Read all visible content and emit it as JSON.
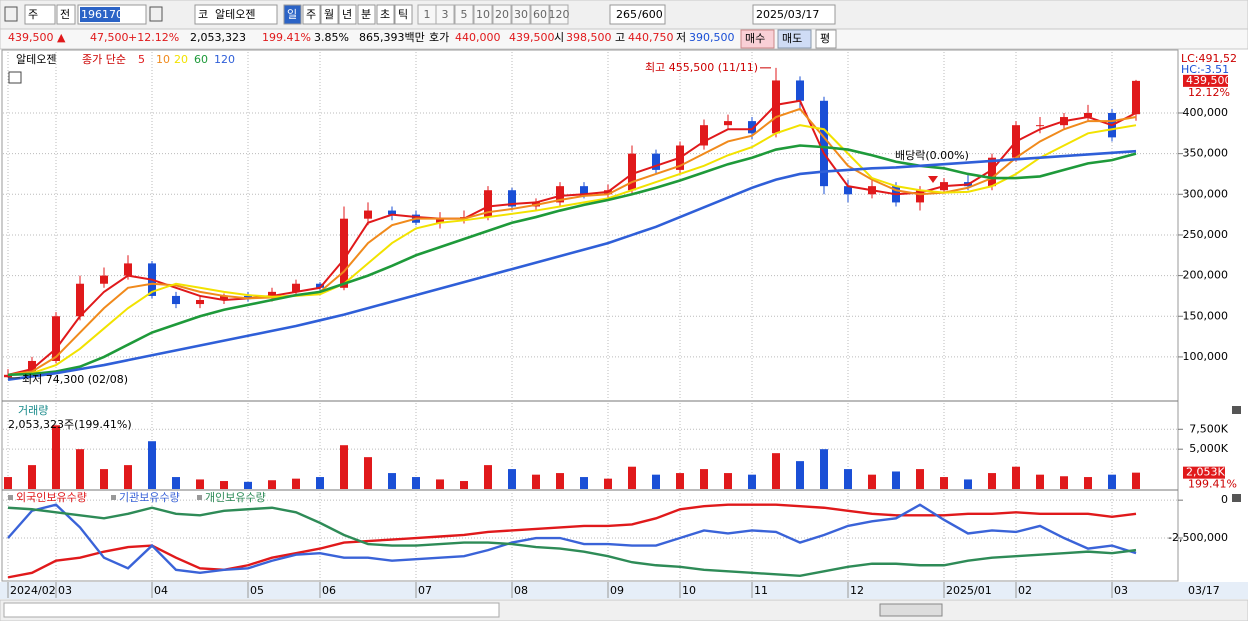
{
  "toolbar": {
    "period": "주",
    "prev": "전",
    "code": "196170",
    "market": "코",
    "name": "알테오젠",
    "units": [
      "일",
      "주",
      "월",
      "년",
      "분",
      "초",
      "틱"
    ],
    "intervals": [
      "1",
      "3",
      "5",
      "10",
      "20",
      "30",
      "60",
      "120"
    ],
    "count": "265",
    "max": "/600",
    "date": "2025/03/17"
  },
  "quote": {
    "price": "439,500 ▲",
    "change": "47,500",
    "rate": "+12.12%",
    "volume": "2,053,323",
    "volume_rate": "199.41%",
    "turnover": "3.85%",
    "amount": "865,393백만",
    "bid_label": "호가",
    "ask": "440,000",
    "bid": "439,500",
    "open_label": "시",
    "open": "398,500",
    "high_label": "고",
    "high": "440,750",
    "low_label": "저",
    "low": "390,500",
    "buy": "매수",
    "sell": "매도",
    "avg": "평"
  },
  "chart_data": [
    {
      "type": "candlestick",
      "title": "알테오젠",
      "legend_title": "종가 단순",
      "categories": [
        "2024/02",
        null,
        "03",
        null,
        null,
        null,
        "04",
        null,
        null,
        null,
        "05",
        null,
        null,
        "06",
        null,
        null,
        null,
        "07",
        null,
        null,
        null,
        "08",
        null,
        null,
        null,
        "09",
        null,
        null,
        "10",
        null,
        null,
        "11",
        null,
        null,
        null,
        "12",
        null,
        null,
        null,
        "2025/01",
        null,
        null,
        "02",
        null,
        null,
        null,
        "03",
        null
      ],
      "x_end_label": "03/17",
      "candles": {
        "open": [
          75000,
          78000,
          95000,
          150000,
          190000,
          200000,
          215000,
          175000,
          165000,
          170000,
          175000,
          172000,
          180000,
          190000,
          185000,
          270000,
          280000,
          275000,
          265000,
          270000,
          272000,
          305000,
          285000,
          290000,
          310000,
          300000,
          305000,
          350000,
          330000,
          360000,
          385000,
          390000,
          375000,
          440000,
          415000,
          310000,
          300000,
          310000,
          290000,
          305000,
          315000,
          310000,
          345000,
          385000,
          385000,
          395000,
          400000,
          398500
        ],
        "high": [
          85000,
          100000,
          155000,
          200000,
          210000,
          225000,
          218000,
          180000,
          175000,
          178000,
          180000,
          185000,
          195000,
          192000,
          285000,
          290000,
          285000,
          280000,
          278000,
          280000,
          310000,
          308000,
          295000,
          315000,
          315000,
          312000,
          360000,
          355000,
          365000,
          392000,
          398000,
          395000,
          455500,
          445000,
          420000,
          318000,
          320000,
          315000,
          310000,
          320000,
          325000,
          350000,
          390000,
          395000,
          400000,
          410000,
          405000,
          440750
        ],
        "low": [
          74300,
          76000,
          92000,
          145000,
          185000,
          195000,
          172000,
          160000,
          160000,
          165000,
          168000,
          168000,
          176000,
          180000,
          182000,
          262000,
          268000,
          262000,
          258000,
          264000,
          268000,
          280000,
          280000,
          285000,
          295000,
          295000,
          300000,
          325000,
          325000,
          355000,
          380000,
          368000,
          370000,
          405000,
          300000,
          290000,
          295000,
          285000,
          280000,
          300000,
          305000,
          305000,
          340000,
          375000,
          380000,
          390000,
          365000,
          390500
        ],
        "close": [
          78000,
          95000,
          150000,
          190000,
          200000,
          215000,
          175000,
          165000,
          170000,
          175000,
          172000,
          180000,
          190000,
          185000,
          270000,
          280000,
          275000,
          265000,
          270000,
          272000,
          305000,
          285000,
          290000,
          310000,
          300000,
          305000,
          350000,
          330000,
          360000,
          385000,
          390000,
          375000,
          440000,
          415000,
          310000,
          300000,
          310000,
          290000,
          305000,
          315000,
          310000,
          345000,
          385000,
          385000,
          395000,
          400000,
          370000,
          439500
        ],
        "up_color": "#e0191b",
        "down_color": "#1a4fd6"
      },
      "series": [
        {
          "name": "5",
          "color": "#e0191b",
          "values": [
            78000,
            85000,
            110000,
            150000,
            180000,
            200000,
            195000,
            185000,
            175000,
            170000,
            172000,
            175000,
            180000,
            185000,
            220000,
            265000,
            275000,
            272000,
            270000,
            270000,
            285000,
            288000,
            290000,
            298000,
            300000,
            303000,
            325000,
            335000,
            345000,
            365000,
            380000,
            380000,
            410000,
            415000,
            350000,
            310000,
            305000,
            300000,
            302000,
            310000,
            312000,
            330000,
            365000,
            380000,
            390000,
            395000,
            385000,
            400000
          ]
        },
        {
          "name": "10",
          "color": "#f08a1c",
          "values": [
            78000,
            82000,
            100000,
            130000,
            160000,
            185000,
            190000,
            188000,
            180000,
            175000,
            172000,
            173000,
            176000,
            180000,
            205000,
            240000,
            262000,
            270000,
            270000,
            270000,
            278000,
            282000,
            287000,
            293000,
            298000,
            300000,
            315000,
            325000,
            335000,
            350000,
            365000,
            372000,
            395000,
            405000,
            370000,
            335000,
            318000,
            305000,
            300000,
            302000,
            308000,
            320000,
            345000,
            365000,
            380000,
            390000,
            390000,
            395000
          ]
        },
        {
          "name": "20",
          "color": "#f2e200",
          "values": [
            78000,
            80000,
            90000,
            110000,
            135000,
            160000,
            180000,
            190000,
            185000,
            180000,
            176000,
            174000,
            175000,
            177000,
            190000,
            215000,
            240000,
            258000,
            265000,
            268000,
            272000,
            276000,
            280000,
            285000,
            290000,
            295000,
            305000,
            315000,
            325000,
            335000,
            348000,
            358000,
            375000,
            385000,
            380000,
            350000,
            320000,
            310000,
            305000,
            302000,
            303000,
            310000,
            325000,
            345000,
            360000,
            375000,
            380000,
            385000
          ]
        },
        {
          "name": "60",
          "color": "#1e9a3a",
          "values": [
            78000,
            79000,
            82000,
            88000,
            100000,
            115000,
            130000,
            140000,
            150000,
            158000,
            164000,
            170000,
            176000,
            180000,
            190000,
            200000,
            212000,
            225000,
            235000,
            245000,
            255000,
            265000,
            272000,
            280000,
            287000,
            293000,
            300000,
            308000,
            317000,
            327000,
            337000,
            345000,
            355000,
            360000,
            358000,
            355000,
            348000,
            340000,
            335000,
            332000,
            325000,
            320000,
            320000,
            322000,
            330000,
            338000,
            342000,
            350000
          ]
        },
        {
          "name": "120",
          "color": "#2f5fd8",
          "values": [
            72000,
            76000,
            80000,
            85000,
            90000,
            96000,
            102000,
            108000,
            114000,
            120000,
            126000,
            132000,
            138000,
            145000,
            152000,
            160000,
            168000,
            176000,
            184000,
            192000,
            200000,
            208000,
            216000,
            224000,
            232000,
            240000,
            250000,
            260000,
            272000,
            284000,
            296000,
            308000,
            318000,
            325000,
            328000,
            330000,
            332000,
            333000,
            335000,
            337000,
            339000,
            341000,
            343000,
            345000,
            347000,
            349000,
            351000,
            353000
          ]
        }
      ],
      "ylim": [
        47000,
        475000
      ],
      "yticks": [
        {
          "value": 100000,
          "label": "100,000"
        },
        {
          "value": 150000,
          "label": "150,000"
        },
        {
          "value": 200000,
          "label": "200,000"
        },
        {
          "value": 250000,
          "label": "250,000"
        },
        {
          "value": 300000,
          "label": "300,000"
        },
        {
          "value": 350000,
          "label": "350,000"
        },
        {
          "value": 400000,
          "label": "400,000"
        }
      ],
      "annotations": {
        "high": "최고 455,500 (11/11)",
        "low": "최저 74,300 (02/08)",
        "dividend": "배당락(0.00%)"
      },
      "right_labels": {
        "lc": "LC:491,52",
        "hc": "HC:-3.51",
        "price": "439,500",
        "rate": "12.12%"
      },
      "grid": true
    },
    {
      "type": "bar",
      "title": "거래량",
      "subtitle": "2,053,323주(199.41%)",
      "values": [
        1500000,
        3000000,
        8000000,
        5000000,
        2500000,
        3000000,
        6000000,
        1500000,
        1200000,
        1000000,
        900000,
        1100000,
        1300000,
        1500000,
        5500000,
        4000000,
        2000000,
        1500000,
        1200000,
        1000000,
        3000000,
        2500000,
        1800000,
        2000000,
        1500000,
        1300000,
        2800000,
        1800000,
        2000000,
        2500000,
        2000000,
        1800000,
        4500000,
        3500000,
        5000000,
        2500000,
        1800000,
        2200000,
        2500000,
        1500000,
        1200000,
        2000000,
        2800000,
        1800000,
        1600000,
        1500000,
        1800000,
        2053323
      ],
      "right_labels": {
        "last": "2,053K",
        "rate": "199.41%"
      },
      "ylim": [
        0,
        10800000
      ],
      "yticks": [
        {
          "value": 5000000,
          "label": "5,000K"
        },
        {
          "value": 7500000,
          "label": "7,500K"
        }
      ],
      "grid": true
    },
    {
      "type": "line",
      "series": [
        {
          "name": "외국인보유수량",
          "color": "#e0191b",
          "values": [
            -5100000,
            -4800000,
            -4000000,
            -3800000,
            -3400000,
            -3100000,
            -3000000,
            -3800000,
            -4500000,
            -4600000,
            -4300000,
            -3800000,
            -3500000,
            -3200000,
            -2800000,
            -2700000,
            -2600000,
            -2500000,
            -2400000,
            -2300000,
            -2100000,
            -2000000,
            -1900000,
            -1800000,
            -1700000,
            -1700000,
            -1600000,
            -1200000,
            -600000,
            -400000,
            -300000,
            -300000,
            -300000,
            -400000,
            -500000,
            -700000,
            -900000,
            -1000000,
            -1000000,
            -1000000,
            -900000,
            -900000,
            -800000,
            -900000,
            -900000,
            -900000,
            -1100000,
            -900000
          ]
        },
        {
          "name": "기관보유수량",
          "color": "#3a63d8",
          "values": [
            -2500000,
            -700000,
            -300000,
            -1800000,
            -3800000,
            -4500000,
            -3000000,
            -4600000,
            -4800000,
            -4600000,
            -4500000,
            -4000000,
            -3600000,
            -3500000,
            -3800000,
            -3800000,
            -4000000,
            -3900000,
            -3800000,
            -3700000,
            -3300000,
            -2800000,
            -2500000,
            -2500000,
            -2900000,
            -2900000,
            -3000000,
            -3000000,
            -2500000,
            -2000000,
            -2200000,
            -2000000,
            -2100000,
            -2800000,
            -2300000,
            -1700000,
            -1400000,
            -1200000,
            -300000,
            -1300000,
            -2200000,
            -2000000,
            -2100000,
            -1700000,
            -2500000,
            -3200000,
            -3000000,
            -3500000
          ]
        },
        {
          "name": "개인보유수량",
          "color": "#2e8b57",
          "values": [
            -500000,
            -600000,
            -800000,
            -1000000,
            -1200000,
            -900000,
            -500000,
            -900000,
            -1000000,
            -700000,
            -600000,
            -500000,
            -800000,
            -1500000,
            -2300000,
            -2900000,
            -3000000,
            -3000000,
            -2900000,
            -2800000,
            -2800000,
            -2900000,
            -3100000,
            -3200000,
            -3400000,
            -3700000,
            -4100000,
            -4300000,
            -4400000,
            -4600000,
            -4700000,
            -4800000,
            -4900000,
            -5000000,
            -4700000,
            -4400000,
            -4200000,
            -4200000,
            -4300000,
            -4300000,
            -4000000,
            -3800000,
            -3700000,
            -3600000,
            -3500000,
            -3400000,
            -3500000,
            -3300000
          ]
        }
      ],
      "ylim": [
        -5340000,
        540000
      ],
      "yticks": [
        0,
        {
          "value": -2500000,
          "label": "-2,500,000"
        }
      ],
      "grid": true
    }
  ]
}
